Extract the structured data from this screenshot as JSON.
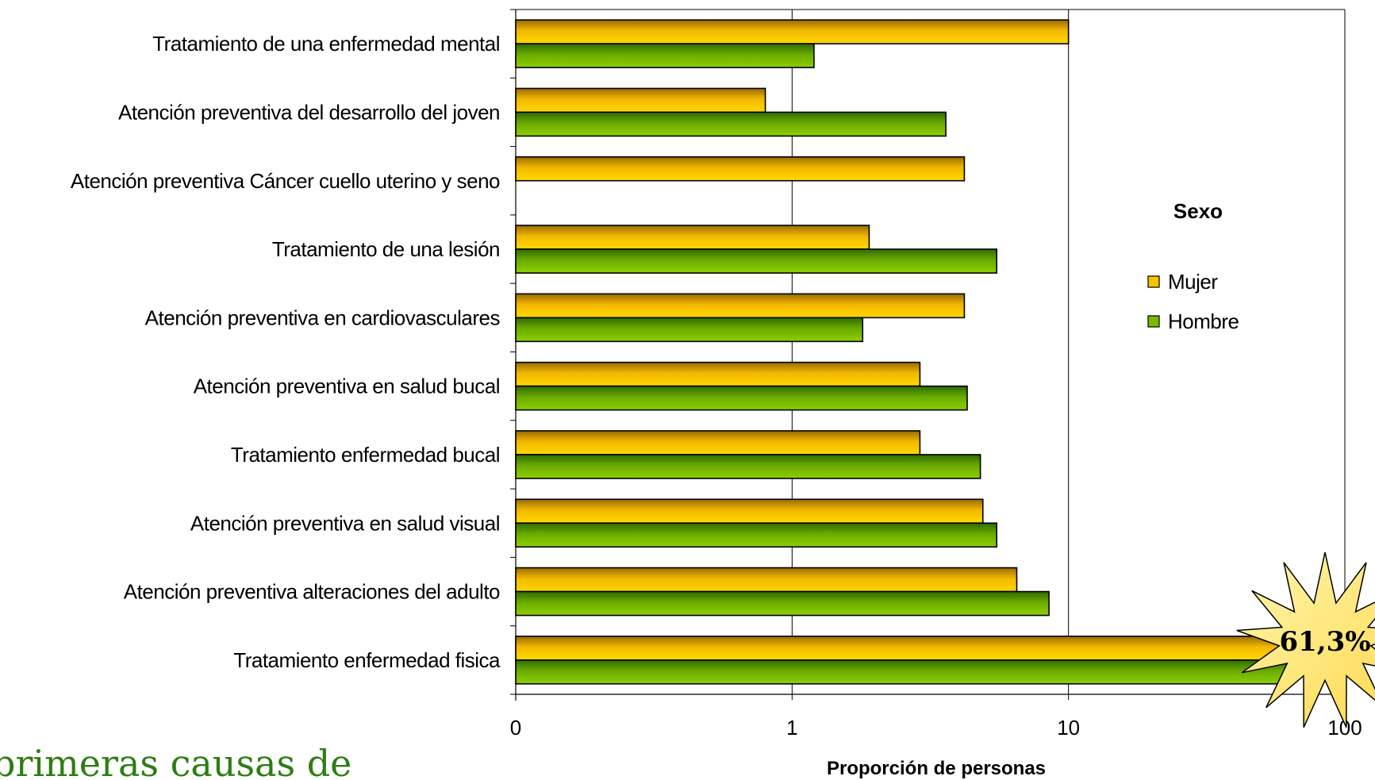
{
  "chart_data": {
    "type": "bar",
    "orientation": "horizontal",
    "x_scale": "log",
    "xlabel": "Proporción de personas",
    "x_ticks": [
      {
        "value": 0.1,
        "label": "0"
      },
      {
        "value": 1,
        "label": "1"
      },
      {
        "value": 10,
        "label": "10"
      },
      {
        "value": 100,
        "label": "100"
      }
    ],
    "xlim": [
      0.1,
      100
    ],
    "grid": "vertical major gridlines",
    "categories": [
      "Tratamiento de una enfermedad mental",
      "Atención preventiva del desarrollo del joven",
      "Atención preventiva Cáncer cuello uterino y seno",
      "Tratamiento de una lesión",
      "Atención preventiva en cardiovasculares",
      "Atención preventiva en salud bucal",
      "Tratamiento enfermedad bucal",
      "Atención preventiva en salud visual",
      "Atención preventiva alteraciones del adulto",
      "Tratamiento enfermedad fisica"
    ],
    "series": [
      {
        "name": "Mujer",
        "color": "#f5c400",
        "values": [
          10,
          0.8,
          4.2,
          1.9,
          4.2,
          2.9,
          2.9,
          4.9,
          6.5,
          61.3
        ]
      },
      {
        "name": "Hombre",
        "color": "#7ab800",
        "values": [
          1.2,
          3.6,
          null,
          5.5,
          1.8,
          4.3,
          4.8,
          5.5,
          8.5,
          61.3
        ]
      }
    ],
    "legend": {
      "title": "Sexo",
      "position": "right"
    },
    "annotation": "61,3%"
  },
  "caption": "primeras causas de"
}
